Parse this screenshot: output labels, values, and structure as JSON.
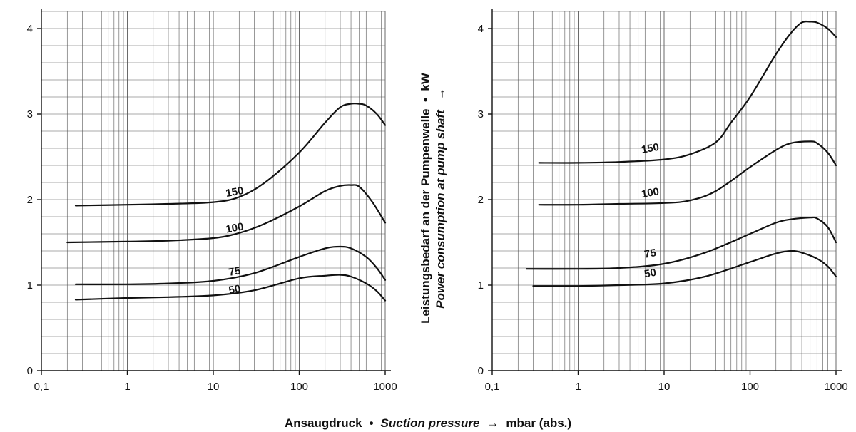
{
  "labels": {
    "xlabel_de": "Ansaugdruck",
    "xlabel_sep": "•",
    "xlabel_en": "Suction pressure",
    "xlabel_arrow": "→",
    "xlabel_unit": "mbar (abs.)",
    "ylabel_de": "Leistungsbedarf an der Pumpenwelle",
    "ylabel_sep": "•",
    "ylabel_unit": "kW",
    "ylabel_en": "Power consumption at pump shaft",
    "ylabel_arrow": "→"
  },
  "chart_data": [
    {
      "type": "line",
      "x_scale": "log",
      "xlim": [
        0.1,
        1000
      ],
      "ylim": [
        0,
        4.2
      ],
      "x_ticks": [
        0.1,
        1,
        10,
        100,
        1000
      ],
      "x_tick_labels": [
        "0,1",
        "1",
        "10",
        "100",
        "1000"
      ],
      "y_ticks": [
        0,
        1,
        2,
        3,
        4
      ],
      "y_tick_labels": [
        "0",
        "1",
        "2",
        "3",
        "4"
      ],
      "grid": true,
      "series": [
        {
          "name": "150",
          "points": [
            [
              0.25,
              1.93
            ],
            [
              1,
              1.94
            ],
            [
              3,
              1.95
            ],
            [
              10,
              1.97
            ],
            [
              20,
              2.03
            ],
            [
              40,
              2.2
            ],
            [
              100,
              2.55
            ],
            [
              200,
              2.9
            ],
            [
              300,
              3.08
            ],
            [
              400,
              3.12
            ],
            [
              500,
              3.12
            ],
            [
              600,
              3.1
            ],
            [
              800,
              3.0
            ],
            [
              1000,
              2.87
            ]
          ]
        },
        {
          "name": "100",
          "points": [
            [
              0.2,
              1.5
            ],
            [
              1,
              1.51
            ],
            [
              3,
              1.52
            ],
            [
              10,
              1.55
            ],
            [
              20,
              1.61
            ],
            [
              40,
              1.72
            ],
            [
              100,
              1.92
            ],
            [
              200,
              2.1
            ],
            [
              300,
              2.16
            ],
            [
              400,
              2.17
            ],
            [
              500,
              2.15
            ],
            [
              700,
              1.98
            ],
            [
              1000,
              1.73
            ]
          ]
        },
        {
          "name": "75",
          "points": [
            [
              0.25,
              1.01
            ],
            [
              1,
              1.01
            ],
            [
              3,
              1.02
            ],
            [
              10,
              1.05
            ],
            [
              30,
              1.14
            ],
            [
              100,
              1.33
            ],
            [
              200,
              1.43
            ],
            [
              300,
              1.45
            ],
            [
              400,
              1.43
            ],
            [
              600,
              1.33
            ],
            [
              800,
              1.2
            ],
            [
              1000,
              1.06
            ]
          ]
        },
        {
          "name": "50",
          "points": [
            [
              0.25,
              0.83
            ],
            [
              1,
              0.85
            ],
            [
              3,
              0.86
            ],
            [
              10,
              0.88
            ],
            [
              30,
              0.94
            ],
            [
              100,
              1.08
            ],
            [
              200,
              1.11
            ],
            [
              300,
              1.12
            ],
            [
              400,
              1.1
            ],
            [
              600,
              1.02
            ],
            [
              800,
              0.93
            ],
            [
              1000,
              0.82
            ]
          ]
        }
      ],
      "curve_labels": [
        {
          "text": "150",
          "x": 18,
          "y": 2.05
        },
        {
          "text": "100",
          "x": 18,
          "y": 1.63
        },
        {
          "text": "75",
          "x": 18,
          "y": 1.12
        },
        {
          "text": "50",
          "x": 18,
          "y": 0.91
        }
      ]
    },
    {
      "type": "line",
      "x_scale": "log",
      "xlim": [
        0.1,
        1000
      ],
      "ylim": [
        0,
        4.2
      ],
      "x_ticks": [
        0.1,
        1,
        10,
        100,
        1000
      ],
      "x_tick_labels": [
        "0,1",
        "1",
        "10",
        "100",
        "1000"
      ],
      "y_ticks": [
        0,
        1,
        2,
        3,
        4
      ],
      "y_tick_labels": [
        "0",
        "1",
        "2",
        "3",
        "4"
      ],
      "grid": true,
      "series": [
        {
          "name": "150",
          "points": [
            [
              0.35,
              2.43
            ],
            [
              1,
              2.43
            ],
            [
              3,
              2.44
            ],
            [
              10,
              2.47
            ],
            [
              20,
              2.53
            ],
            [
              40,
              2.67
            ],
            [
              60,
              2.9
            ],
            [
              100,
              3.2
            ],
            [
              200,
              3.7
            ],
            [
              300,
              3.95
            ],
            [
              400,
              4.07
            ],
            [
              500,
              4.08
            ],
            [
              600,
              4.07
            ],
            [
              800,
              4.0
            ],
            [
              1000,
              3.9
            ]
          ]
        },
        {
          "name": "100",
          "points": [
            [
              0.35,
              1.94
            ],
            [
              1,
              1.94
            ],
            [
              3,
              1.95
            ],
            [
              10,
              1.96
            ],
            [
              20,
              1.99
            ],
            [
              40,
              2.1
            ],
            [
              100,
              2.38
            ],
            [
              200,
              2.58
            ],
            [
              300,
              2.66
            ],
            [
              500,
              2.68
            ],
            [
              600,
              2.66
            ],
            [
              800,
              2.55
            ],
            [
              1000,
              2.4
            ]
          ]
        },
        {
          "name": "75",
          "points": [
            [
              0.25,
              1.19
            ],
            [
              1,
              1.19
            ],
            [
              3,
              1.2
            ],
            [
              10,
              1.25
            ],
            [
              30,
              1.38
            ],
            [
              100,
              1.6
            ],
            [
              200,
              1.73
            ],
            [
              300,
              1.77
            ],
            [
              500,
              1.79
            ],
            [
              600,
              1.78
            ],
            [
              800,
              1.68
            ],
            [
              1000,
              1.5
            ]
          ]
        },
        {
          "name": "50",
          "points": [
            [
              0.3,
              0.99
            ],
            [
              1,
              0.99
            ],
            [
              3,
              1.0
            ],
            [
              10,
              1.02
            ],
            [
              30,
              1.1
            ],
            [
              100,
              1.27
            ],
            [
              200,
              1.37
            ],
            [
              300,
              1.4
            ],
            [
              400,
              1.38
            ],
            [
              600,
              1.31
            ],
            [
              800,
              1.22
            ],
            [
              1000,
              1.1
            ]
          ]
        }
      ],
      "curve_labels": [
        {
          "text": "150",
          "x": 7,
          "y": 2.56
        },
        {
          "text": "100",
          "x": 7,
          "y": 2.04
        },
        {
          "text": "75",
          "x": 7,
          "y": 1.33
        },
        {
          "text": "50",
          "x": 7,
          "y": 1.1
        }
      ]
    }
  ]
}
